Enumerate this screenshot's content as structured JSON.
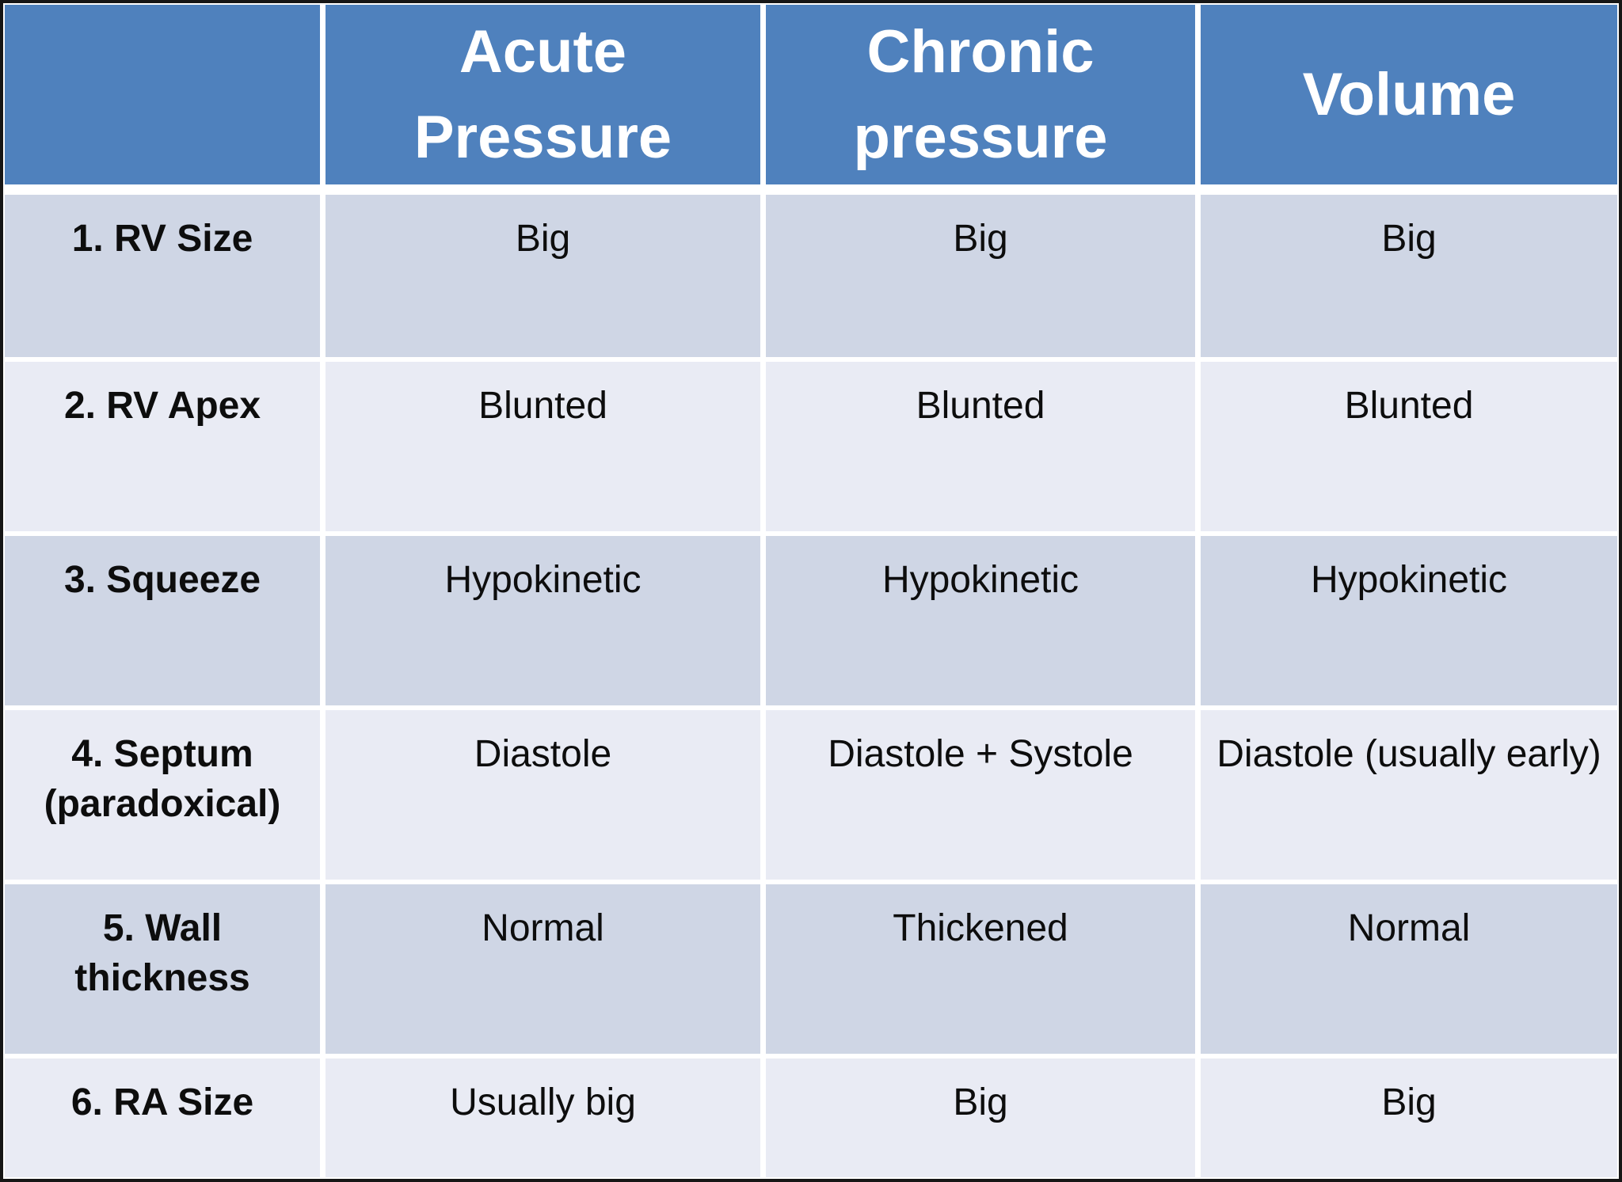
{
  "colors": {
    "header-bg": "#4F81BD",
    "header-text": "#FFFFFF",
    "band-dark": "#CFD6E5",
    "band-light": "#E9EBF4",
    "body-text": "#0D0D0D",
    "gap": "#FFFFFF",
    "frame": "#161616"
  },
  "table": {
    "headers": [
      "Acute Pressure",
      "Chronic pressure",
      "Volume"
    ],
    "rows": [
      {
        "label": "1. RV Size",
        "cells": [
          "Big",
          "Big",
          "Big"
        ]
      },
      {
        "label": "2. RV Apex",
        "cells": [
          "Blunted",
          "Blunted",
          "Blunted"
        ]
      },
      {
        "label": "3. Squeeze",
        "cells": [
          "Hypokinetic",
          "Hypokinetic",
          "Hypokinetic"
        ]
      },
      {
        "label": "4. Septum (paradoxical)",
        "cells": [
          "Diastole",
          "Diastole + Systole",
          "Diastole (usually early)"
        ]
      },
      {
        "label": "5. Wall thickness",
        "cells": [
          "Normal",
          "Thickened",
          "Normal"
        ]
      },
      {
        "label": "6. RA Size",
        "cells": [
          "Usually big",
          "Big",
          "Big"
        ]
      }
    ]
  }
}
